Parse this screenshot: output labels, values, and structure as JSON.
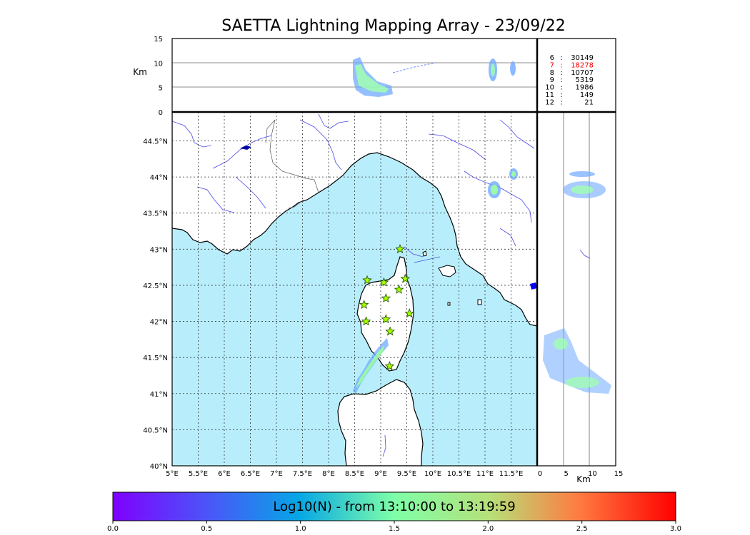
{
  "title": "SAETTA Lightning Mapping Array - 23/09/22",
  "chart_data": [
    {
      "name": "altitude-vs-longitude",
      "type": "scatter",
      "ylabel": "Km",
      "ylim": [
        0,
        15
      ],
      "yticks": [
        "0",
        "5",
        "10",
        "15"
      ],
      "xlim": [
        5,
        12
      ]
    },
    {
      "name": "map",
      "type": "scatter",
      "xlim": [
        5,
        12
      ],
      "ylim": [
        40,
        44.9
      ],
      "xticks": [
        "5°E",
        "5.5°E",
        "6°E",
        "6.5°E",
        "7°E",
        "7.5°E",
        "8°E",
        "8.5°E",
        "9°E",
        "9.5°E",
        "10°E",
        "10.5°E",
        "11°E",
        "11.5°E"
      ],
      "yticks": [
        "40°N",
        "40.5°N",
        "41°N",
        "41.5°N",
        "42°N",
        "42.5°N",
        "43°N",
        "43.5°N",
        "44°N",
        "44.5°N"
      ],
      "stations": [
        {
          "lon": 9.37,
          "lat": 43.0
        },
        {
          "lon": 8.74,
          "lat": 42.57
        },
        {
          "lon": 9.06,
          "lat": 42.54
        },
        {
          "lon": 9.47,
          "lat": 42.59
        },
        {
          "lon": 9.1,
          "lat": 42.32
        },
        {
          "lon": 9.35,
          "lat": 42.44
        },
        {
          "lon": 8.68,
          "lat": 42.23
        },
        {
          "lon": 9.55,
          "lat": 42.11
        },
        {
          "lon": 8.72,
          "lat": 42.0
        },
        {
          "lon": 9.1,
          "lat": 42.03
        },
        {
          "lon": 9.18,
          "lat": 41.86
        },
        {
          "lon": 9.17,
          "lat": 41.38
        }
      ]
    },
    {
      "name": "latitude-vs-altitude",
      "type": "scatter",
      "xlabel": "Km",
      "xlim": [
        0,
        15
      ],
      "xticks": [
        "0",
        "5",
        "10",
        "15"
      ],
      "ylim": [
        40,
        44.9
      ]
    },
    {
      "name": "colorbar",
      "type": "heatmap",
      "label": "Log10(N) - from 13:10:00 to 13:19:59",
      "range": [
        0,
        3
      ],
      "ticks": [
        "0.0",
        "0.5",
        "1.0",
        "1.5",
        "2.0",
        "2.5",
        "3.0"
      ]
    }
  ],
  "counts": [
    {
      "level": "6",
      "count": "30149",
      "color": "#000000"
    },
    {
      "level": "7",
      "count": "18278",
      "color": "#ff0000"
    },
    {
      "level": "8",
      "count": "10707",
      "color": "#000000"
    },
    {
      "level": "9",
      "count": "5319",
      "color": "#000000"
    },
    {
      "level": "10",
      "count": "1986",
      "color": "#000000"
    },
    {
      "level": "11",
      "count": "149",
      "color": "#000000"
    },
    {
      "level": "12",
      "count": "21",
      "color": "#000000"
    }
  ],
  "colors": {
    "sea": "#b8eefc",
    "land": "#ffffff",
    "rivers": "#4a4ae8",
    "station_fill": "#a8ff00",
    "station_edge": "#2a5a00"
  }
}
